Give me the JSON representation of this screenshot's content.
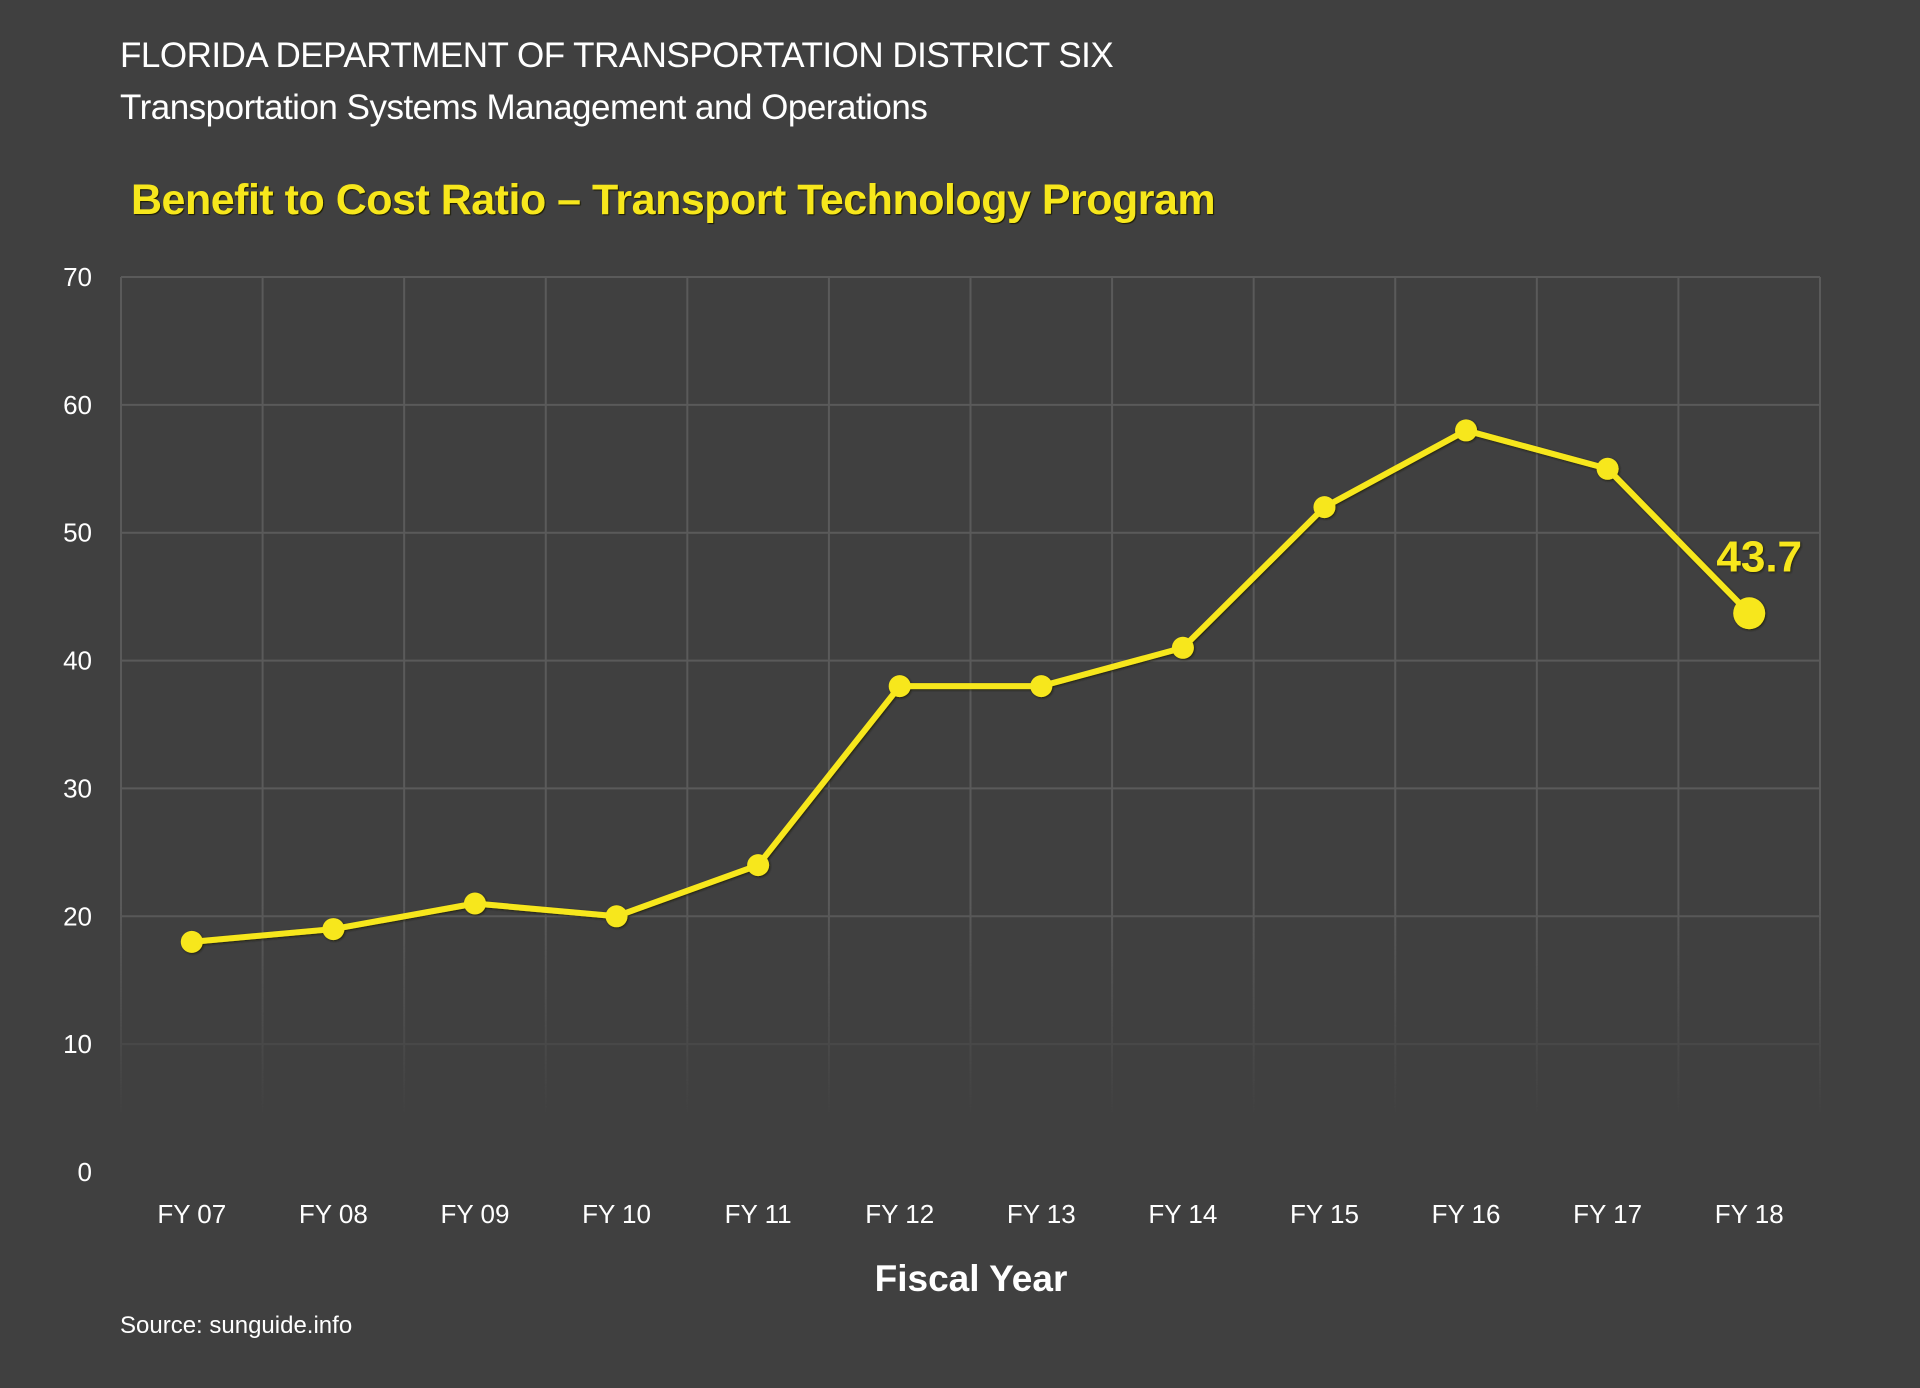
{
  "header": {
    "line1": "FLORIDA DEPARTMENT OF TRANSPORTATION DISTRICT SIX",
    "line2": "Transportation Systems Management and Operations"
  },
  "colors": {
    "background": "#404040",
    "grid": "#5a5a5a",
    "series": "#f7e71c",
    "text": "#ffffff"
  },
  "footer": {
    "source": "Source: sunguide.info"
  },
  "chart_data": {
    "type": "line",
    "title": "Benefit to Cost Ratio – Transport Technology Program",
    "xlabel": "Fiscal Year",
    "ylabel": "",
    "categories": [
      "FY 07",
      "FY 08",
      "FY 09",
      "FY 10",
      "FY 11",
      "FY 12",
      "FY 13",
      "FY 14",
      "FY 15",
      "FY 16",
      "FY 17",
      "FY 18"
    ],
    "series": [
      {
        "name": "Benefit to Cost Ratio",
        "values": [
          18,
          19,
          21,
          20,
          24,
          38,
          38,
          41,
          52,
          58,
          55,
          43.7
        ]
      }
    ],
    "yticks": [
      0,
      10,
      20,
      30,
      40,
      50,
      60,
      70
    ],
    "ylim": [
      0,
      70
    ],
    "grid": true,
    "legend": "none",
    "annotations": [
      {
        "category": "FY 18",
        "value": 43.7,
        "text": "43.7",
        "highlight": true
      }
    ]
  }
}
